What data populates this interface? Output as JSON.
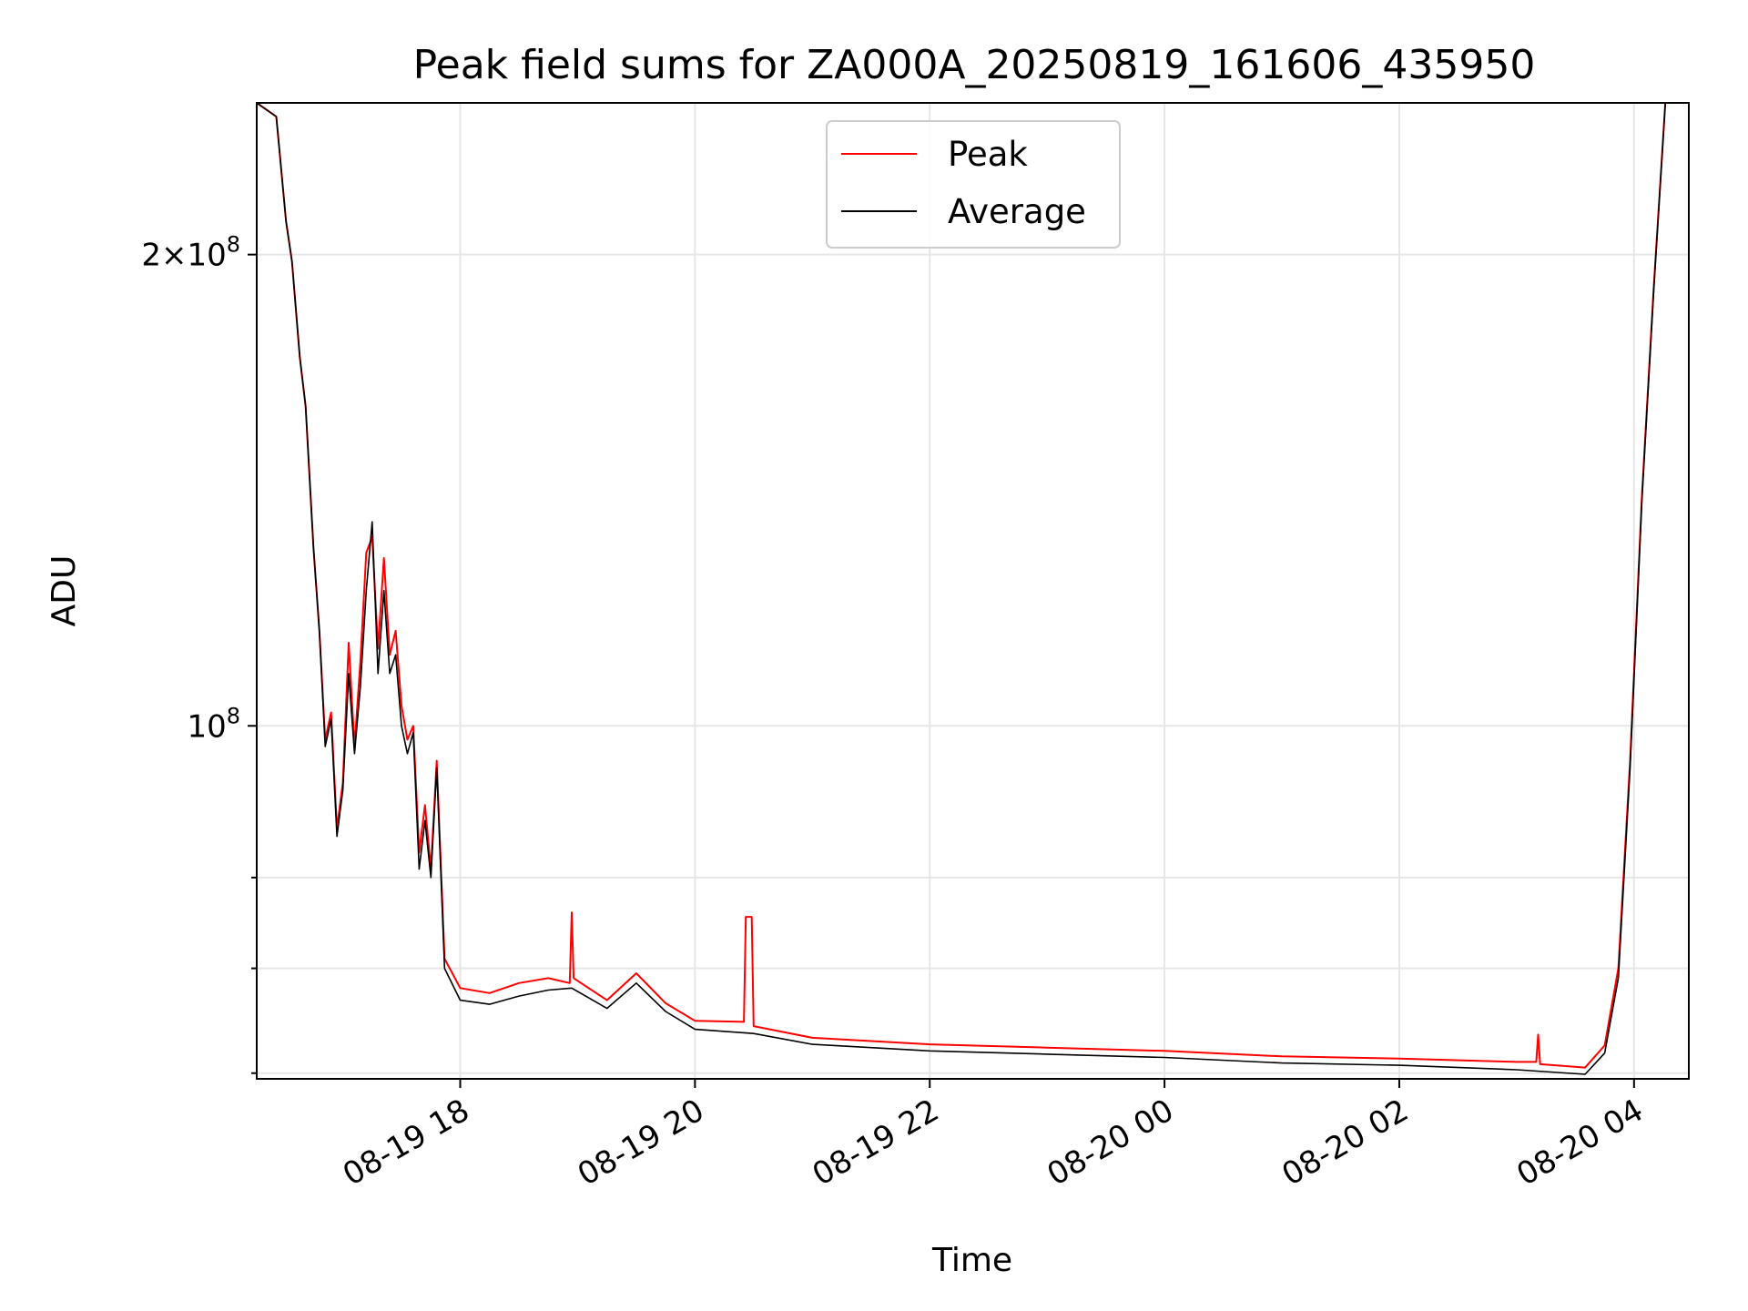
{
  "chart_data": {
    "type": "line",
    "title": "Peak field sums for ZA000A_20250819_161606_435950",
    "xlabel": "Time",
    "ylabel": "ADU",
    "yscale": "log",
    "ylim": [
      59500000,
      250000000
    ],
    "x_range": [
      "2025-08-19 16:16",
      "2025-08-20 04:28"
    ],
    "x_ticks": [
      {
        "x": "2025-08-19 18:00",
        "label": "08-19 18"
      },
      {
        "x": "2025-08-19 20:00",
        "label": "08-19 20"
      },
      {
        "x": "2025-08-19 22:00",
        "label": "08-19 22"
      },
      {
        "x": "2025-08-20 00:00",
        "label": "08-20 00"
      },
      {
        "x": "2025-08-20 02:00",
        "label": "08-20 02"
      },
      {
        "x": "2025-08-20 04:00",
        "label": "08-20 04"
      }
    ],
    "y_ticks_major": [
      {
        "y": 100000000,
        "base": "10",
        "exp": "8",
        "coef": ""
      },
      {
        "y": 200000000,
        "base": "10",
        "exp": "8",
        "coef": "2"
      }
    ],
    "y_ticks_minor": [
      60000000,
      70000000,
      80000000
    ],
    "grid": true,
    "legend_position": "top-center",
    "series": [
      {
        "name": "Peak",
        "color": "#ff0000",
        "points": [
          [
            "2025-08-19 16:16",
            250000000
          ],
          [
            "2025-08-19 16:26",
            245000000
          ],
          [
            "2025-08-19 16:31",
            210000000
          ],
          [
            "2025-08-19 16:34",
            198000000
          ],
          [
            "2025-08-19 16:38",
            172000000
          ],
          [
            "2025-08-19 16:41",
            160000000
          ],
          [
            "2025-08-19 16:45",
            130000000
          ],
          [
            "2025-08-19 16:48",
            115000000
          ],
          [
            "2025-08-19 16:51",
            98000000
          ],
          [
            "2025-08-19 16:54",
            102000000
          ],
          [
            "2025-08-19 16:57",
            86000000
          ],
          [
            "2025-08-19 17:00",
            92000000
          ],
          [
            "2025-08-19 17:03",
            113000000
          ],
          [
            "2025-08-19 17:06",
            97000000
          ],
          [
            "2025-08-19 17:09",
            110000000
          ],
          [
            "2025-08-19 17:12",
            129000000
          ],
          [
            "2025-08-19 17:15",
            132000000
          ],
          [
            "2025-08-19 17:18",
            112000000
          ],
          [
            "2025-08-19 17:21",
            128000000
          ],
          [
            "2025-08-19 17:24",
            111000000
          ],
          [
            "2025-08-19 17:27",
            115000000
          ],
          [
            "2025-08-19 17:30",
            103000000
          ],
          [
            "2025-08-19 17:33",
            98000000
          ],
          [
            "2025-08-19 17:36",
            100000000
          ],
          [
            "2025-08-19 17:39",
            83000000
          ],
          [
            "2025-08-19 17:42",
            89000000
          ],
          [
            "2025-08-19 17:45",
            81000000
          ],
          [
            "2025-08-19 17:48",
            95000000
          ],
          [
            "2025-08-19 17:52",
            71000000
          ],
          [
            "2025-08-19 18:00",
            68000000
          ],
          [
            "2025-08-19 18:15",
            67500000
          ],
          [
            "2025-08-19 18:30",
            68500000
          ],
          [
            "2025-08-19 18:45",
            69000000
          ],
          [
            "2025-08-19 18:56",
            68500000
          ],
          [
            "2025-08-19 18:57",
            76000000
          ],
          [
            "2025-08-19 18:58",
            69000000
          ],
          [
            "2025-08-19 19:15",
            66800000
          ],
          [
            "2025-08-19 19:30",
            69500000
          ],
          [
            "2025-08-19 19:45",
            66500000
          ],
          [
            "2025-08-19 20:00",
            64800000
          ],
          [
            "2025-08-19 20:25",
            64700000
          ],
          [
            "2025-08-19 20:26",
            75500000
          ],
          [
            "2025-08-19 20:29",
            75500000
          ],
          [
            "2025-08-19 20:30",
            64300000
          ],
          [
            "2025-08-19 21:00",
            63200000
          ],
          [
            "2025-08-19 22:00",
            62600000
          ],
          [
            "2025-08-19 23:00",
            62300000
          ],
          [
            "2025-08-20 00:00",
            62000000
          ],
          [
            "2025-08-20 01:00",
            61500000
          ],
          [
            "2025-08-20 02:00",
            61300000
          ],
          [
            "2025-08-20 03:00",
            61000000
          ],
          [
            "2025-08-20 03:10",
            61000000
          ],
          [
            "2025-08-20 03:11",
            63500000
          ],
          [
            "2025-08-20 03:12",
            60800000
          ],
          [
            "2025-08-20 03:35",
            60500000
          ],
          [
            "2025-08-20 03:45",
            62500000
          ],
          [
            "2025-08-20 03:52",
            70000000
          ],
          [
            "2025-08-20 03:58",
            95000000
          ],
          [
            "2025-08-20 04:04",
            140000000
          ],
          [
            "2025-08-20 04:10",
            190000000
          ],
          [
            "2025-08-20 04:16",
            250000000
          ],
          [
            "2025-08-20 04:28",
            250000000
          ]
        ]
      },
      {
        "name": "Average",
        "color": "#000000",
        "points": [
          [
            "2025-08-19 16:16",
            250000000
          ],
          [
            "2025-08-19 16:26",
            245000000
          ],
          [
            "2025-08-19 16:31",
            210000000
          ],
          [
            "2025-08-19 16:34",
            198000000
          ],
          [
            "2025-08-19 16:38",
            172000000
          ],
          [
            "2025-08-19 16:41",
            160000000
          ],
          [
            "2025-08-19 16:45",
            130000000
          ],
          [
            "2025-08-19 16:48",
            115000000
          ],
          [
            "2025-08-19 16:51",
            97000000
          ],
          [
            "2025-08-19 16:54",
            101000000
          ],
          [
            "2025-08-19 16:57",
            85000000
          ],
          [
            "2025-08-19 17:00",
            91000000
          ],
          [
            "2025-08-19 17:03",
            108000000
          ],
          [
            "2025-08-19 17:06",
            96000000
          ],
          [
            "2025-08-19 17:09",
            106000000
          ],
          [
            "2025-08-19 17:12",
            122000000
          ],
          [
            "2025-08-19 17:15",
            135000000
          ],
          [
            "2025-08-19 17:18",
            108000000
          ],
          [
            "2025-08-19 17:21",
            122000000
          ],
          [
            "2025-08-19 17:24",
            108000000
          ],
          [
            "2025-08-19 17:27",
            111000000
          ],
          [
            "2025-08-19 17:30",
            100000000
          ],
          [
            "2025-08-19 17:33",
            96000000
          ],
          [
            "2025-08-19 17:36",
            99000000
          ],
          [
            "2025-08-19 17:39",
            81000000
          ],
          [
            "2025-08-19 17:42",
            87000000
          ],
          [
            "2025-08-19 17:45",
            80000000
          ],
          [
            "2025-08-19 17:48",
            94000000
          ],
          [
            "2025-08-19 17:52",
            70000000
          ],
          [
            "2025-08-19 18:00",
            66800000
          ],
          [
            "2025-08-19 18:15",
            66400000
          ],
          [
            "2025-08-19 18:30",
            67200000
          ],
          [
            "2025-08-19 18:45",
            67800000
          ],
          [
            "2025-08-19 18:57",
            68000000
          ],
          [
            "2025-08-19 19:15",
            66000000
          ],
          [
            "2025-08-19 19:30",
            68500000
          ],
          [
            "2025-08-19 19:45",
            65700000
          ],
          [
            "2025-08-19 20:00",
            64000000
          ],
          [
            "2025-08-19 20:30",
            63600000
          ],
          [
            "2025-08-19 21:00",
            62600000
          ],
          [
            "2025-08-19 22:00",
            62000000
          ],
          [
            "2025-08-19 23:00",
            61700000
          ],
          [
            "2025-08-20 00:00",
            61400000
          ],
          [
            "2025-08-20 01:00",
            60900000
          ],
          [
            "2025-08-20 02:00",
            60700000
          ],
          [
            "2025-08-20 03:00",
            60300000
          ],
          [
            "2025-08-20 03:35",
            59900000
          ],
          [
            "2025-08-20 03:45",
            61800000
          ],
          [
            "2025-08-20 03:52",
            69000000
          ],
          [
            "2025-08-20 03:58",
            94000000
          ],
          [
            "2025-08-20 04:04",
            139000000
          ],
          [
            "2025-08-20 04:10",
            189000000
          ],
          [
            "2025-08-20 04:16",
            250000000
          ],
          [
            "2025-08-20 04:28",
            250000000
          ]
        ]
      }
    ]
  }
}
